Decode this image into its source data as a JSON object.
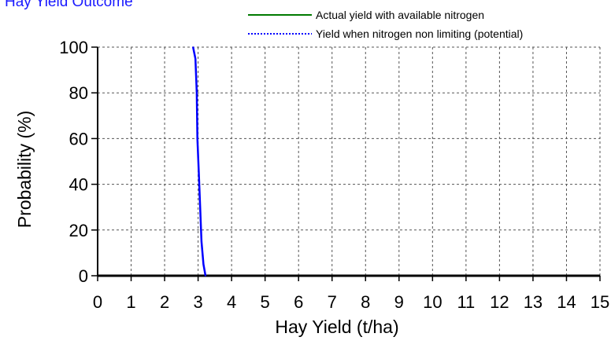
{
  "chart_data": {
    "type": "line",
    "title": "Hay Yield Outcome",
    "xlabel": "Hay Yield (t/ha)",
    "ylabel": "Probability (%)",
    "xlim": [
      0,
      15
    ],
    "ylim": [
      0,
      100
    ],
    "x_ticks": [
      0,
      1,
      2,
      3,
      4,
      5,
      6,
      7,
      8,
      9,
      10,
      11,
      12,
      13,
      14,
      15
    ],
    "y_ticks": [
      0,
      20,
      40,
      60,
      80,
      100
    ],
    "grid": true,
    "legend_position": "top-right",
    "series": [
      {
        "name": "Actual yield with available nitrogen",
        "color": "#007a00",
        "style": "solid",
        "points": []
      },
      {
        "name": "Yield when nitrogen non limiting (potential)",
        "color": "#0000ff",
        "style": "dotted",
        "points": [
          {
            "x": 2.85,
            "y": 100
          },
          {
            "x": 2.92,
            "y": 95
          },
          {
            "x": 2.96,
            "y": 80
          },
          {
            "x": 2.98,
            "y": 60
          },
          {
            "x": 3.02,
            "y": 45
          },
          {
            "x": 3.06,
            "y": 30
          },
          {
            "x": 3.1,
            "y": 15
          },
          {
            "x": 3.16,
            "y": 5
          },
          {
            "x": 3.22,
            "y": 0
          }
        ]
      }
    ]
  }
}
